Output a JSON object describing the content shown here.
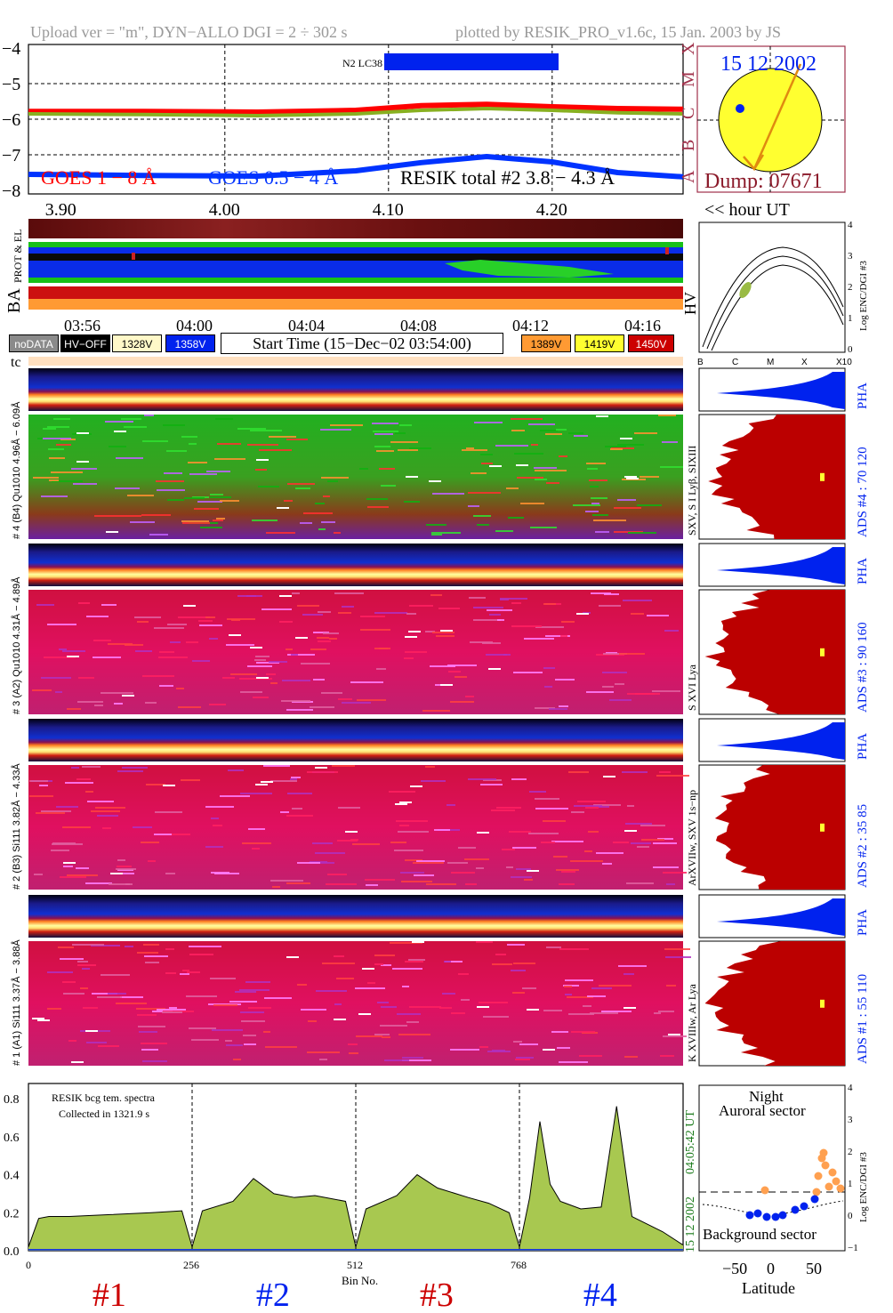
{
  "header": {
    "left": "Upload ver = \"m\", DYN−ALLO DGI =   2 ÷ 302 s",
    "right": "plotted by RESIK_PRO_v1.6c, 15 Jan. 2003 by JS"
  },
  "goes_panel": {
    "yticks": [
      "−4",
      "−5",
      "−6",
      "−7",
      "−8"
    ],
    "flare_classes": [
      "X",
      "M",
      "C",
      "B",
      "A"
    ],
    "bar_label": "N2 LC38",
    "legend_goes18": "GOES 1 − 8 Å",
    "legend_goes054": "GOES 0.5 − 4 Å",
    "legend_resik": "RESIK total #2  3.8 − 4.3 Å",
    "xticks": [
      "3.90",
      "4.00",
      "4.10",
      "4.20"
    ],
    "xunit": "<< hour UT",
    "colors": {
      "goes18": "#ff0000",
      "goes054": "#0033ff",
      "resik": "#88b020"
    }
  },
  "sun_panel": {
    "date": "15 12 2002",
    "dump": "Dump: 07671"
  },
  "status_panel": {
    "side_label": "BA",
    "prot_label": "PROT & EL"
  },
  "hv_panel": {
    "label": "HV",
    "ylabel": "Log ENC/DGI #3",
    "yticks": [
      "4",
      "3",
      "2",
      "1",
      "0"
    ],
    "xticks": [
      "B",
      "C",
      "M",
      "X",
      "X10"
    ]
  },
  "timeline": {
    "ticks": [
      "03:56",
      "04:00",
      "04:04",
      "04:08",
      "04:12",
      "04:16"
    ]
  },
  "legend_chips": [
    {
      "label": "noDATA",
      "bg": "#8a8a8a",
      "fg": "#ffffff"
    },
    {
      "label": "HV−OFF",
      "bg": "#000000",
      "fg": "#ffffff"
    },
    {
      "label": "1328V",
      "bg": "#fff8c8",
      "fg": "#000000"
    },
    {
      "label": "1358V",
      "bg": "#0022ee",
      "fg": "#ffffff"
    },
    {
      "label": "1389V",
      "bg": "#ff9a33",
      "fg": "#000000"
    },
    {
      "label": "1419V",
      "bg": "#ffff30",
      "fg": "#000000"
    },
    {
      "label": "1450V",
      "bg": "#cc0000",
      "fg": "#ffffff"
    }
  ],
  "start_time": "Start Time (15−Dec−02 03:54:00)",
  "tc_label": "tc",
  "detectors": [
    {
      "top_label": "# 4 (B4) Qu1010 4.96Å − 6.09Å",
      "lines": "SXV, S I Lyβ, SIXIII",
      "ads": "ADS #4 :   70 120",
      "theme": "green"
    },
    {
      "top_label": "# 3 (A2) Qu1010 4.31Å − 4.89Å",
      "lines": "S XVI Lya",
      "ads": "ADS #3 :   90 160",
      "theme": "red"
    },
    {
      "top_label": "# 2 (B3) Si111 3.82Å − 4.33Å",
      "lines": "ArXVIIw, SXV 1s−np",
      "ads": "ADS #2 :   35  85",
      "theme": "red"
    },
    {
      "top_label": "# 1 (A1) Si111 3.37Å − 3.88Å",
      "lines": "K XVIIIw, Ar Lya",
      "ads": "ADS #1 :   55 110",
      "theme": "red"
    }
  ],
  "pha_label": "PHA",
  "spectrum": {
    "title_line1": "RESIK bcg tem. spectra",
    "title_line2": "Collected in  1321.9 s",
    "time_stamp": "04:05:42 UT",
    "date_stamp": "15 12 2002",
    "xlabel": "Bin No.",
    "xticks": [
      "0",
      "256",
      "512",
      "768"
    ],
    "yticks": [
      "0.8",
      "0.6",
      "0.4",
      "0.2",
      "0.0"
    ],
    "section_labels": [
      "#1",
      "#2",
      "#3",
      "#4"
    ]
  },
  "latitude_panel": {
    "night": "Night",
    "auroral": "Auroral sector",
    "background": "Background sector",
    "xlabel": "Latitude",
    "xticks": [
      "−50",
      "0",
      "50"
    ],
    "ylabel": "Log ENC/DGI #3",
    "yticks": [
      "4",
      "3",
      "2",
      "1",
      "0",
      "−1"
    ]
  },
  "chart_data": {
    "type": "line",
    "title": "RESIK bcg tem. spectra",
    "xlabel": "Bin No.",
    "ylabel": "",
    "xlim": [
      0,
      1024
    ],
    "ylim": [
      0,
      0.88
    ],
    "sections": [
      {
        "name": "#1",
        "x": [
          0,
          16,
          32,
          64,
          128,
          192,
          240,
          256
        ],
        "values": [
          0.02,
          0.17,
          0.18,
          0.18,
          0.19,
          0.2,
          0.21,
          0.02
        ]
      },
      {
        "name": "#2",
        "x": [
          256,
          272,
          320,
          352,
          384,
          416,
          448,
          496,
          512
        ],
        "values": [
          0.02,
          0.21,
          0.26,
          0.38,
          0.3,
          0.28,
          0.29,
          0.26,
          0.02
        ]
      },
      {
        "name": "#3",
        "x": [
          512,
          528,
          576,
          608,
          640,
          688,
          720,
          752,
          768
        ],
        "values": [
          0.02,
          0.22,
          0.29,
          0.4,
          0.33,
          0.28,
          0.25,
          0.2,
          0.02
        ]
      },
      {
        "name": "#4",
        "x": [
          768,
          784,
          800,
          816,
          832,
          864,
          896,
          920,
          944,
          992,
          1024
        ],
        "values": [
          0.02,
          0.28,
          0.68,
          0.35,
          0.26,
          0.22,
          0.23,
          0.76,
          0.18,
          0.1,
          0.03
        ]
      }
    ],
    "goes_time_axis": {
      "xlim": [
        3.88,
        4.28
      ],
      "ylim": [
        -8.1,
        -3.9
      ]
    },
    "series": [
      {
        "name": "GOES 1 − 8 Å",
        "x": [
          3.88,
          3.95,
          4.02,
          4.08,
          4.12,
          4.16,
          4.2,
          4.24,
          4.28
        ],
        "values": [
          -5.78,
          -5.78,
          -5.8,
          -5.75,
          -5.62,
          -5.58,
          -5.65,
          -5.7,
          -5.72
        ]
      },
      {
        "name": "GOES 0.5 − 4 Å",
        "x": [
          3.88,
          3.95,
          4.02,
          4.08,
          4.12,
          4.16,
          4.2,
          4.24,
          4.28
        ],
        "values": [
          -7.55,
          -7.58,
          -7.6,
          -7.45,
          -7.22,
          -7.05,
          -7.2,
          -7.5,
          -7.62
        ]
      },
      {
        "name": "RESIK total #2  3.8 − 4.3 Å",
        "x": [
          3.88,
          3.95,
          4.02,
          4.08,
          4.12,
          4.16,
          4.2,
          4.24,
          4.28
        ],
        "values": [
          -5.85,
          -5.87,
          -5.9,
          -5.85,
          -5.75,
          -5.7,
          -5.75,
          -5.82,
          -5.85
        ]
      }
    ]
  }
}
